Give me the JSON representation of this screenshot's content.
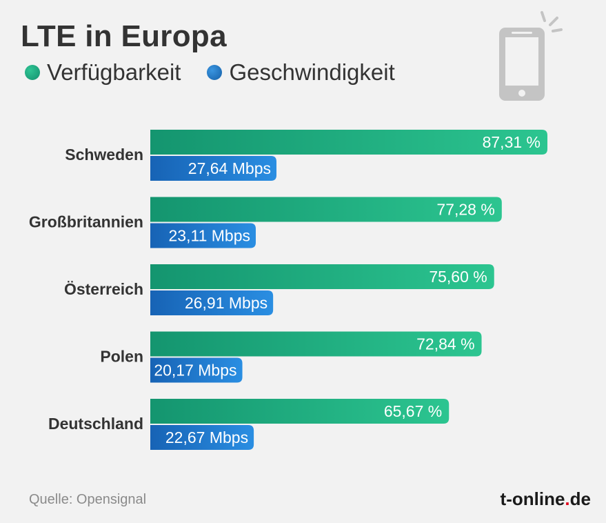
{
  "header": {
    "title": "LTE in Europa"
  },
  "legend": [
    {
      "label": "Verfügbarkeit",
      "color": "#1aa57f"
    },
    {
      "label": "Geschwindigkeit",
      "color": "#1b78c8"
    }
  ],
  "icons": {
    "decoration": "smartphone-icon"
  },
  "chart_data": {
    "type": "bar",
    "orientation": "horizontal",
    "title": "LTE in Europa",
    "categories": [
      "Schweden",
      "Großbritannien",
      "Österreich",
      "Polen",
      "Deutschland"
    ],
    "series": [
      {
        "name": "Verfügbarkeit",
        "unit": "%",
        "values": [
          87.31,
          77.28,
          75.6,
          72.84,
          65.67
        ],
        "labels": [
          "87,31 %",
          "77,28 %",
          "75,60 %",
          "72,84 %",
          "65,67 %"
        ],
        "color": "#1aa57f"
      },
      {
        "name": "Geschwindigkeit",
        "unit": "Mbps",
        "values": [
          27.64,
          23.11,
          26.91,
          20.17,
          22.67
        ],
        "labels": [
          "27,64 Mbps",
          "23,11 Mbps",
          "26,91 Mbps",
          "20,17 Mbps",
          "22,67 Mbps"
        ],
        "color": "#1b78c8"
      }
    ],
    "grid": false,
    "legend_position": "top-left"
  },
  "footer": {
    "source": "Quelle: Opensignal",
    "brand_part1": "t-online",
    "brand_dot": ".",
    "brand_part2": "de"
  }
}
